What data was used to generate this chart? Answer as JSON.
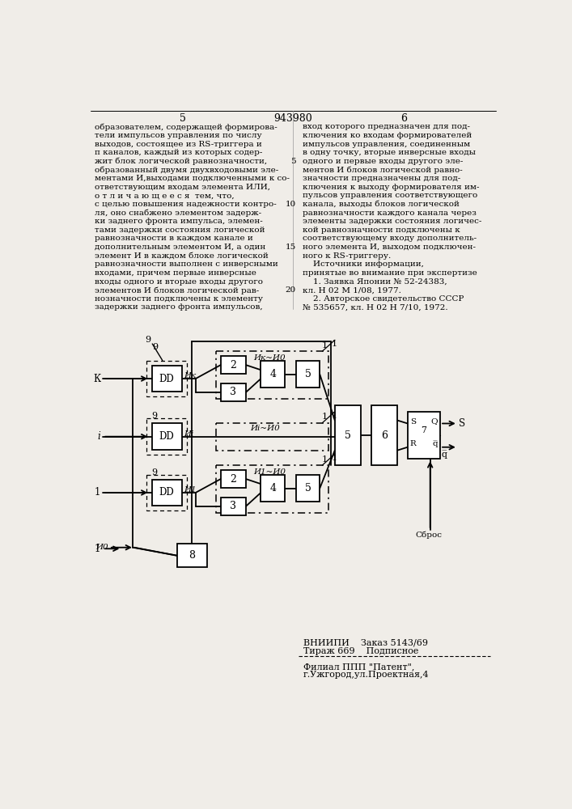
{
  "bg_color": "#f0ede8",
  "page_num_left": "5",
  "page_num_center": "943980",
  "page_num_right": "6",
  "col1_lines": [
    "образователем, содержащей формирова-",
    "тели импульсов управления по числу",
    "выходов, состоящее из RS-триггера и",
    "п каналов, каждый из которых содер-",
    "жит блок логической равнозначности,",
    "образованный двумя двухвходовыми эле-",
    "ментами И,выходами подключенными к со-",
    "ответствующим входам элемента ИЛИ,",
    "о т л и ч а ю щ е е с я  тем, что,",
    "с целью повышения надежности контро-",
    "ля, оно снабжено элементом задерж-",
    "ки заднего фронта импульса, элемен-",
    "тами задержки состояния логической",
    "равнозначности в каждом канале и",
    "дополнительным элементом И, а один",
    "элемент И в каждом блоке логической",
    "равнозначности выполнен с инверсными",
    "входами, причем первые инверсные",
    "входы одного и вторые входы другого",
    "элементов И блоков логической рав-",
    "нозначности подключены к элементу",
    "задержки заднего фронта импульсов,"
  ],
  "col2_lines": [
    "вход которого предназначен для под-",
    "ключения ко входам формирователей",
    "импульсов управления, соединенным",
    "в одну точку, вторые инверсные входы",
    "одного и первые входы другого эле-",
    "ментов И блоков логической равно-",
    "значности предназначены для под-",
    "ключения к выходу формирователя им-",
    "пульсов управления соответствующего",
    "канала, выходы блоков логической",
    "равнозначности каждого канала через",
    "элементы задержки состояния логичес-",
    "кой равнозначности подключены к",
    "соответствующему входу дополнитель-",
    "ного элемента И, выходом подключен-",
    "ного к RS-триггеру.",
    "    Источники информации,",
    "принятые во внимание при экспертизе",
    "    1. Заявка Японии № 52-24383,",
    "кл. Н 02 М 1/08, 1977.",
    "    2. Авторское свидетельство СССР",
    "№ 535657, кл. Н 02 Н 7/10, 1972."
  ],
  "footer_line1": "ВНИИПИ    Заказ 5143/69",
  "footer_line2": "Тираж 669    Подписное",
  "footer_line3": "Филиал ППП \"Патент\",",
  "footer_line4": "г.Ужгород,ул.Проектная,4"
}
